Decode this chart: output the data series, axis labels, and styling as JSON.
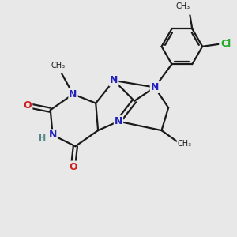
{
  "bg_color": "#e8e8e8",
  "bond_color": "#1a1a1a",
  "N_color": "#2222bb",
  "O_color": "#cc2020",
  "Cl_color": "#22aa22",
  "H_color": "#558888",
  "lw": 1.6,
  "fs": 9,
  "fig_w": 3.0,
  "fig_h": 3.0,
  "dpi": 100,
  "xlim": [
    0,
    10
  ],
  "ylim": [
    0,
    10
  ]
}
